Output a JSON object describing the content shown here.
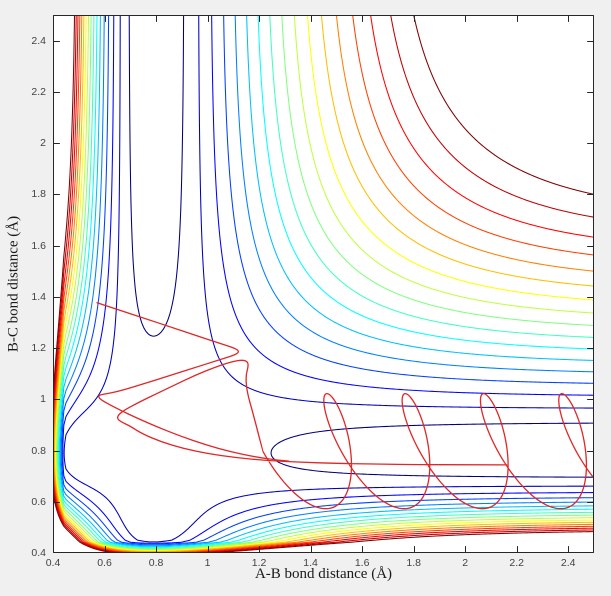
{
  "figure": {
    "background": "#f0f0f0",
    "plot_background": "#ffffff",
    "axis_color": "#262626",
    "tick_label_color": "#424242",
    "label_color": "#1a1a1a"
  },
  "chart_data": {
    "type": "contour",
    "title": "",
    "xlabel": "A-B bond distance (Å)",
    "ylabel": "B-C bond distance (Å)",
    "xlim": [
      0.4,
      2.5
    ],
    "ylim": [
      0.4,
      2.5
    ],
    "grid": false,
    "legend": null,
    "xticks": [
      0.4,
      0.6,
      0.8,
      1.0,
      1.2,
      1.4,
      1.6,
      1.8,
      2.0,
      2.2,
      2.4
    ],
    "xtick_labels": [
      "0.4",
      "0.6",
      "0.8",
      "1",
      "1.2",
      "1.4",
      "1.6",
      "1.8",
      "2",
      "2.2",
      "2.4"
    ],
    "yticks": [
      0.4,
      0.6,
      0.8,
      1.0,
      1.2,
      1.4,
      1.6,
      1.8,
      2.0,
      2.2,
      2.4
    ],
    "ytick_labels": [
      "0.4",
      "0.6",
      "0.8",
      "1",
      "1.2",
      "1.4",
      "1.6",
      "1.8",
      "2",
      "2.2",
      "2.4"
    ],
    "colormap": "jet",
    "contour_levels": {
      "min": -0.955,
      "max": -0.295,
      "count": 17
    },
    "potential_surface": {
      "description": "Collinear A-B-C reaction potential energy surface; Morse channels along both bond distances with coupling producing a corner saddle",
      "formula": "V(x,y) = M(x) + M(y) + k*min(M(x),0)*min(M(y),0) + W(x) + W(y);  M(r) = (1-exp(-a(r-r0)))^2 - 1;  W(r) = w*exp(-(r-0.4)/0.05)",
      "D": 1.0,
      "a": 2.0,
      "r0": 0.79,
      "k": 1.07,
      "w": 0.18,
      "grid_points": 251
    },
    "trajectory": {
      "description": "Classical collision trajectory plotted over the contours",
      "color": "#e02626",
      "line_width": 1.3,
      "exit_segment_points": [
        [
          0.571,
          1.377
        ],
        [
          0.655,
          1.349
        ],
        [
          0.755,
          1.316
        ],
        [
          0.86,
          1.281
        ],
        [
          0.955,
          1.249
        ],
        [
          1.04,
          1.221
        ],
        [
          1.095,
          1.203
        ],
        [
          1.117,
          1.193
        ],
        [
          1.121,
          1.183
        ],
        [
          1.103,
          1.172
        ],
        [
          1.04,
          1.152
        ],
        [
          0.945,
          1.122
        ],
        [
          0.845,
          1.09
        ],
        [
          0.75,
          1.06
        ],
        [
          0.672,
          1.036
        ],
        [
          0.617,
          1.023
        ],
        [
          0.585,
          1.018
        ],
        [
          0.5755,
          1.012
        ],
        [
          0.5835,
          1.0
        ],
        [
          0.612,
          0.983
        ],
        [
          0.66,
          0.958
        ],
        [
          0.725,
          0.927
        ],
        [
          0.805,
          0.892
        ],
        [
          0.895,
          0.856
        ],
        [
          0.99,
          0.823
        ],
        [
          1.09,
          0.795
        ],
        [
          1.19,
          0.774
        ],
        [
          1.27,
          0.763
        ],
        [
          1.315,
          0.7585
        ]
      ],
      "approach_points": [
        [
          2.161,
          0.744
        ],
        [
          1.99,
          0.7445
        ],
        [
          1.82,
          0.745
        ],
        [
          1.66,
          0.747
        ],
        [
          1.5,
          0.75
        ],
        [
          1.36,
          0.754
        ],
        [
          1.23,
          0.761
        ],
        [
          1.11,
          0.772
        ],
        [
          1.0,
          0.788
        ],
        [
          0.905,
          0.808
        ],
        [
          0.82,
          0.834
        ],
        [
          0.745,
          0.866
        ],
        [
          0.7,
          0.895
        ],
        [
          0.664,
          0.912
        ],
        [
          0.6485,
          0.925
        ],
        [
          0.655,
          0.941
        ],
        [
          0.684,
          0.962
        ],
        [
          0.735,
          0.989
        ],
        [
          0.8,
          1.021
        ],
        [
          0.875,
          1.057
        ],
        [
          0.95,
          1.093
        ],
        [
          1.025,
          1.124
        ],
        [
          1.09,
          1.146
        ],
        [
          1.135,
          1.154
        ],
        [
          1.156,
          1.147
        ],
        [
          1.158,
          1.128
        ],
        [
          1.148,
          1.09
        ],
        [
          1.153,
          1.028
        ],
        [
          1.178,
          0.94
        ],
        [
          1.2144,
          0.7975
        ]
      ],
      "product_loops": {
        "x0": 1.537,
        "vx": 0.304,
        "ax": 0.12,
        "phix_deg": 128,
        "cy": 0.7975,
        "ay": 0.225,
        "t0": -0.75,
        "t1": 3.86,
        "dt": 0.02
      }
    }
  }
}
